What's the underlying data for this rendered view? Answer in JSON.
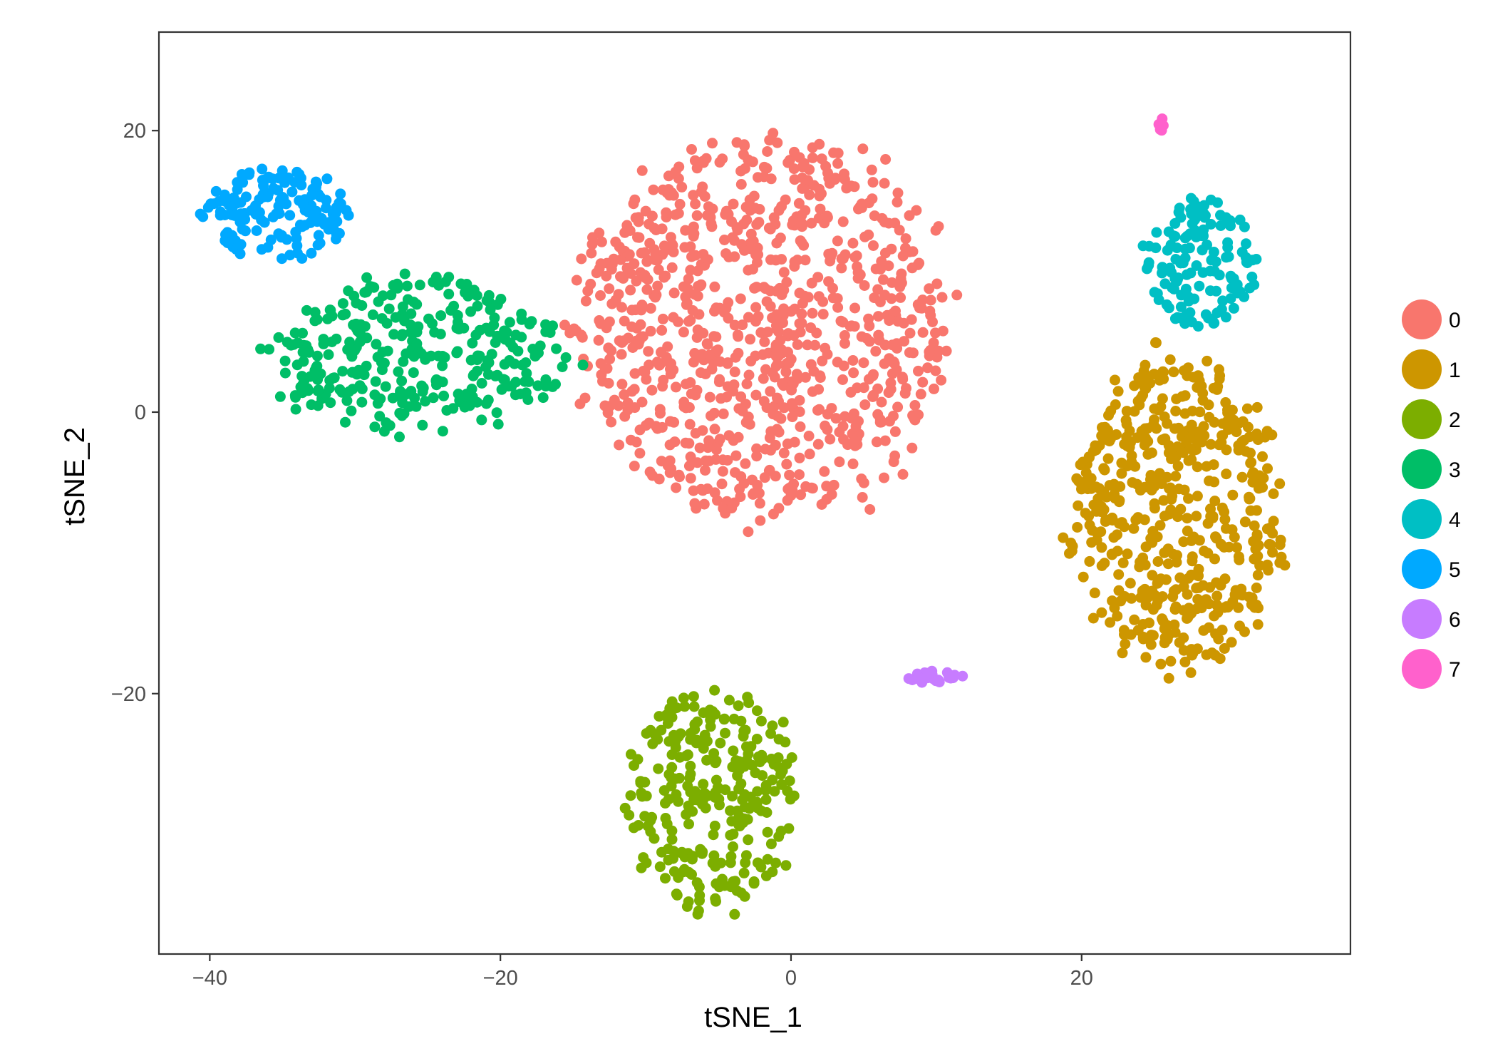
{
  "chart_data": {
    "type": "scatter",
    "title": "",
    "xlabel": "tSNE_1",
    "ylabel": "tSNE_2",
    "xlim": [
      -43.5,
      38.5
    ],
    "ylim": [
      -38.5,
      27
    ],
    "x_ticks": [
      -40,
      -20,
      0,
      20
    ],
    "y_ticks": [
      -20,
      0,
      20
    ],
    "x_tick_labels": [
      "−40",
      "−20",
      "0",
      "20"
    ],
    "y_tick_labels": [
      "−20",
      "0",
      "20"
    ],
    "grid": false,
    "legend_position": "right",
    "legend": [
      "0",
      "1",
      "2",
      "3",
      "4",
      "5",
      "6",
      "7"
    ],
    "clusters": [
      {
        "name": "0",
        "color": "#F8766D",
        "center": [
          -2,
          6
        ],
        "spread": [
          12.5,
          13.5
        ],
        "count": 900
      },
      {
        "name": "1",
        "color": "#CD9600",
        "center": [
          26.5,
          -7
        ],
        "spread": [
          7.2,
          11
        ],
        "count": 520
      },
      {
        "name": "2",
        "color": "#7CAE00",
        "center": [
          -5.5,
          -27.5
        ],
        "spread": [
          5.8,
          7.8
        ],
        "count": 280
      },
      {
        "name": "3",
        "color": "#00BE67",
        "center": [
          -25.5,
          4
        ],
        "spread": [
          10,
          5.5
        ],
        "count": 330
      },
      {
        "name": "4",
        "color": "#00BFC4",
        "center": [
          28.2,
          10.5
        ],
        "spread": [
          3.8,
          4.5
        ],
        "count": 140
      },
      {
        "name": "5",
        "color": "#00A9FF",
        "center": [
          -35.5,
          14
        ],
        "spread": [
          4.8,
          3.3
        ],
        "count": 150
      },
      {
        "name": "6",
        "color": "#C77CFF",
        "center": [
          9.8,
          -18.8
        ],
        "spread": [
          2,
          0.45
        ],
        "count": 28
      },
      {
        "name": "7",
        "color": "#FF61CC",
        "center": [
          25.5,
          20.5
        ],
        "spread": [
          0.25,
          0.6
        ],
        "count": 7
      }
    ]
  }
}
